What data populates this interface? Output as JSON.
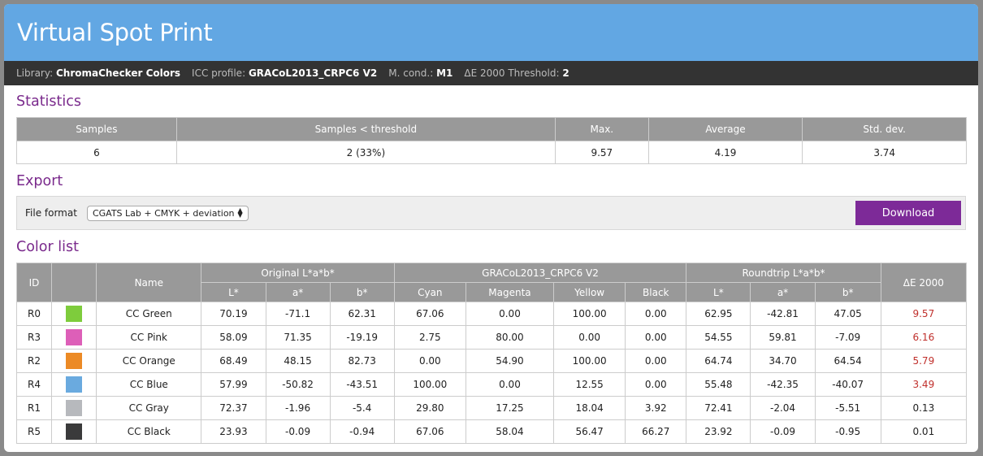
{
  "title": "Virtual Spot Print",
  "info": {
    "library_label": "Library:",
    "library_value": "ChromaChecker Colors",
    "icc_label": "ICC profile:",
    "icc_value": "GRACoL2013_CRPC6 V2",
    "mcond_label": "M. cond.:",
    "mcond_value": "M1",
    "threshold_label": "ΔE 2000 Threshold:",
    "threshold_value": "2"
  },
  "statistics": {
    "heading": "Statistics",
    "headers": [
      "Samples",
      "Samples < threshold",
      "Max.",
      "Average",
      "Std. dev."
    ],
    "values": [
      "6",
      "2 (33%)",
      "9.57",
      "4.19",
      "3.74"
    ]
  },
  "export": {
    "heading": "Export",
    "file_format_label": "File format",
    "selected_format": "CGATS Lab + CMYK + deviation",
    "download_label": "Download"
  },
  "color_list": {
    "heading": "Color list",
    "group_headers": {
      "id": "ID",
      "name": "Name",
      "original": "Original L*a*b*",
      "profile": "GRACoL2013_CRPC6 V2",
      "roundtrip": "Roundtrip L*a*b*",
      "de": "ΔE 2000"
    },
    "sub_headers": {
      "l": "L*",
      "a": "a*",
      "b": "b*",
      "cyan": "Cyan",
      "magenta": "Magenta",
      "yellow": "Yellow",
      "black": "Black",
      "rl": "L*",
      "ra": "a*",
      "rb": "b*"
    },
    "rows": [
      {
        "id": "R0",
        "swatch": "#7ecc3c",
        "name": "CC Green",
        "l": "70.19",
        "a": "-71.1",
        "b": "62.31",
        "c": "67.06",
        "m": "0.00",
        "y": "100.00",
        "k": "0.00",
        "rl": "62.95",
        "ra": "-42.81",
        "rb": "47.05",
        "de": "9.57",
        "over": true
      },
      {
        "id": "R3",
        "swatch": "#dd5fb8",
        "name": "CC Pink",
        "l": "58.09",
        "a": "71.35",
        "b": "-19.19",
        "c": "2.75",
        "m": "80.00",
        "y": "0.00",
        "k": "0.00",
        "rl": "54.55",
        "ra": "59.81",
        "rb": "-7.09",
        "de": "6.16",
        "over": true
      },
      {
        "id": "R2",
        "swatch": "#ec8a25",
        "name": "CC Orange",
        "l": "68.49",
        "a": "48.15",
        "b": "82.73",
        "c": "0.00",
        "m": "54.90",
        "y": "100.00",
        "k": "0.00",
        "rl": "64.74",
        "ra": "34.70",
        "rb": "64.54",
        "de": "5.79",
        "over": true
      },
      {
        "id": "R4",
        "swatch": "#6aaadf",
        "name": "CC Blue",
        "l": "57.99",
        "a": "-50.82",
        "b": "-43.51",
        "c": "100.00",
        "m": "0.00",
        "y": "12.55",
        "k": "0.00",
        "rl": "55.48",
        "ra": "-42.35",
        "rb": "-40.07",
        "de": "3.49",
        "over": true
      },
      {
        "id": "R1",
        "swatch": "#b7b9bd",
        "name": "CC Gray",
        "l": "72.37",
        "a": "-1.96",
        "b": "-5.4",
        "c": "29.80",
        "m": "17.25",
        "y": "18.04",
        "k": "3.92",
        "rl": "72.41",
        "ra": "-2.04",
        "rb": "-5.51",
        "de": "0.13",
        "over": false
      },
      {
        "id": "R5",
        "swatch": "#3a3a3b",
        "name": "CC Black",
        "l": "23.93",
        "a": "-0.09",
        "b": "-0.94",
        "c": "67.06",
        "m": "58.04",
        "y": "56.47",
        "k": "66.27",
        "rl": "23.92",
        "ra": "-0.09",
        "rb": "-0.95",
        "de": "0.01",
        "over": false
      }
    ]
  }
}
